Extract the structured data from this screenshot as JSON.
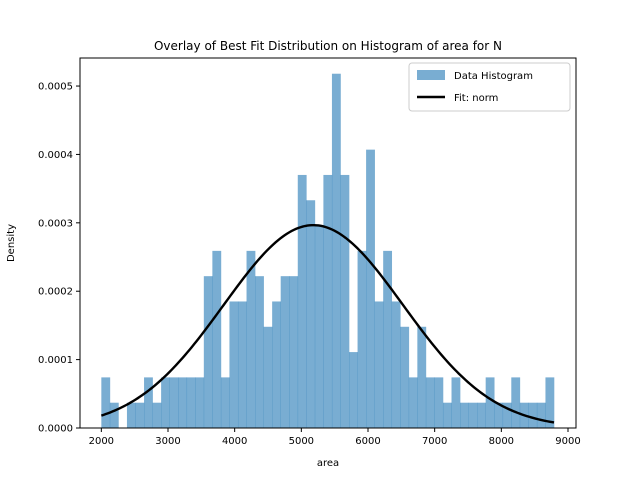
{
  "chart_data": {
    "type": "bar",
    "title": "Overlay of Best Fit Distribution on Histogram of area for N",
    "xlabel": "area",
    "ylabel": "Density",
    "xlim": [
      1680,
      9120
    ],
    "ylim": [
      0,
      0.000541
    ],
    "xticks": [
      2000,
      3000,
      4000,
      5000,
      6000,
      7000,
      8000,
      9000
    ],
    "xtick_labels": [
      "2000",
      "3000",
      "4000",
      "5000",
      "6000",
      "7000",
      "8000",
      "9000"
    ],
    "yticks": [
      0,
      0.0001,
      0.0002,
      0.0003,
      0.0004,
      0.0005
    ],
    "ytick_labels": [
      "0.0000",
      "0.0001",
      "0.0002",
      "0.0003",
      "0.0004",
      "0.0005"
    ],
    "legend_position": "top-right",
    "histogram": {
      "name": "Data Histogram",
      "color": "#1f77b4",
      "opacity": 0.6,
      "bin_start": 2000,
      "bin_end": 8790,
      "values": [
        7.4e-05,
        3.7e-05,
        0,
        3.7e-05,
        3.7e-05,
        7.4e-05,
        3.7e-05,
        7.4e-05,
        7.4e-05,
        7.4e-05,
        7.4e-05,
        7.4e-05,
        0.000222,
        0.000259,
        7.4e-05,
        0.000185,
        0.000185,
        0.000259,
        0.000222,
        0.000148,
        0.000185,
        0.000222,
        0.000222,
        0.00037,
        0.000333,
        0.000296,
        0.00037,
        0.000518,
        0.00037,
        0.000111,
        0.000259,
        0.000407,
        0.000185,
        0.000259,
        0.000185,
        0.000148,
        7.4e-05,
        0.000148,
        7.4e-05,
        7.4e-05,
        3.7e-05,
        7.4e-05,
        3.7e-05,
        3.7e-05,
        3.7e-05,
        7.4e-05,
        3.7e-05,
        3.7e-05,
        7.4e-05,
        3.7e-05,
        3.7e-05,
        3.7e-05,
        7.4e-05
      ]
    },
    "fit": {
      "name": "Fit: norm",
      "color": "#000000",
      "distribution": "norm",
      "mean": 5180,
      "std": 1345,
      "x_range": [
        2000,
        8790
      ]
    }
  }
}
